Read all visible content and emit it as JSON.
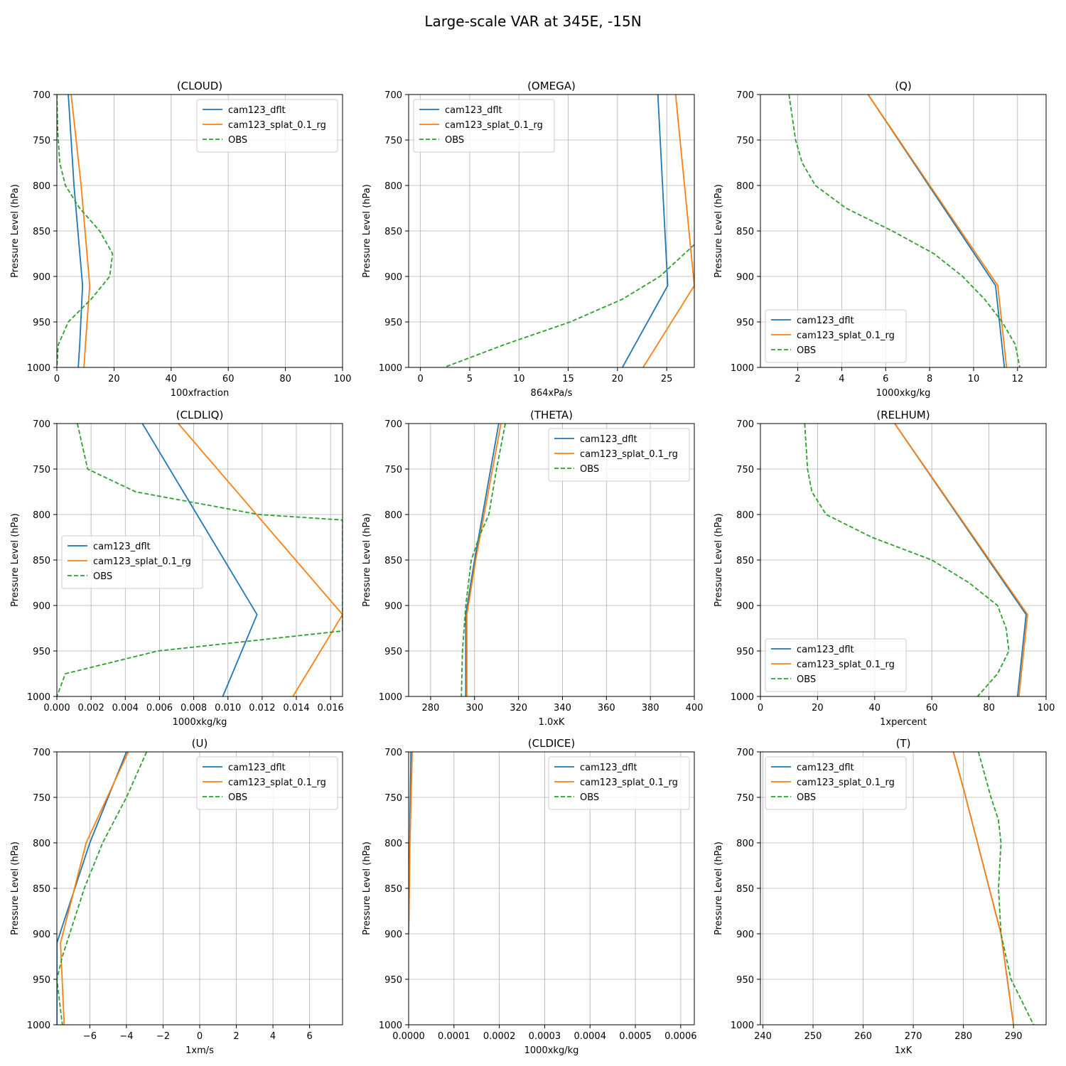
{
  "figure": {
    "suptitle": "Large-scale VAR at 345E, -15N"
  },
  "colors": {
    "dflt": "#1f77b4",
    "splat": "#ff7f0e",
    "obs": "#2ca02c",
    "grid": "#b0b0b0"
  },
  "chart_data": [
    {
      "type": "line",
      "title": "(CLOUD)",
      "xlabel": "100xfraction",
      "ylabel": "Pressure Level (hPa)",
      "xlim": [
        0,
        100
      ],
      "ylim": [
        1000,
        700
      ],
      "xticks": [
        0,
        20,
        40,
        60,
        80,
        100
      ],
      "yticks": [
        700,
        750,
        800,
        850,
        900,
        950,
        1000
      ],
      "grid": true,
      "legend": "upper-right",
      "series": [
        {
          "name": "cam123_dflt",
          "x": [
            4,
            6,
            9,
            8,
            7.5
          ],
          "y": [
            700,
            800,
            910,
            975,
            1000
          ]
        },
        {
          "name": "cam123_splat_0.1_rg",
          "x": [
            5,
            8.5,
            11.5,
            10,
            9.5
          ],
          "y": [
            700,
            800,
            910,
            975,
            1000
          ]
        },
        {
          "name": "OBS",
          "x": [
            0,
            0.3,
            1,
            3,
            8,
            15,
            19.5,
            18.5,
            12,
            4,
            0.5,
            0
          ],
          "y": [
            700,
            740,
            775,
            800,
            825,
            850,
            875,
            900,
            925,
            950,
            975,
            1000
          ]
        }
      ]
    },
    {
      "type": "line",
      "title": "(OMEGA)",
      "xlabel": "864xPa/s",
      "ylabel": "Pressure Level (hPa)",
      "xlim": [
        -1.2,
        27.8
      ],
      "ylim": [
        1000,
        700
      ],
      "xticks": [
        0,
        5,
        10,
        15,
        20,
        25
      ],
      "yticks": [
        700,
        750,
        800,
        850,
        900,
        950,
        1000
      ],
      "grid": true,
      "legend": "upper-left",
      "series": [
        {
          "name": "cam123_dflt",
          "x": [
            24.1,
            25.1,
            20.5
          ],
          "y": [
            700,
            910,
            1000
          ]
        },
        {
          "name": "cam123_splat_0.1_rg",
          "x": [
            25.9,
            27.8,
            22.6
          ],
          "y": [
            700,
            910,
            1000
          ]
        },
        {
          "name": "OBS",
          "x": [
            27.8,
            24.3,
            20.5,
            15.2,
            8.5,
            2.4
          ],
          "y": [
            865,
            900,
            925,
            950,
            975,
            1000
          ]
        }
      ]
    },
    {
      "type": "line",
      "title": "(Q)",
      "xlabel": "1000xkg/kg",
      "ylabel": "Pressure Level (hPa)",
      "xlim": [
        0.3,
        13.3
      ],
      "ylim": [
        1000,
        700
      ],
      "xticks": [
        2,
        4,
        6,
        8,
        10,
        12
      ],
      "yticks": [
        700,
        750,
        800,
        850,
        900,
        950,
        1000
      ],
      "grid": true,
      "legend": "lower-left",
      "series": [
        {
          "name": "cam123_dflt",
          "x": [
            5.2,
            11,
            11.4
          ],
          "y": [
            700,
            910,
            1000
          ]
        },
        {
          "name": "cam123_splat_0.1_rg",
          "x": [
            5.2,
            11.1,
            11.5
          ],
          "y": [
            700,
            910,
            1000
          ]
        },
        {
          "name": "OBS",
          "x": [
            1.6,
            1.9,
            2.2,
            2.8,
            4.2,
            6.3,
            8.2,
            9.5,
            10.5,
            11.3,
            11.9,
            12.1
          ],
          "y": [
            700,
            750,
            775,
            800,
            825,
            850,
            875,
            900,
            925,
            950,
            975,
            1000
          ]
        }
      ]
    },
    {
      "type": "line",
      "title": "(CLDLIQ)",
      "xlabel": "1000xkg/kg",
      "ylabel": "Pressure Level (hPa)",
      "xlim": [
        0,
        0.0167
      ],
      "ylim": [
        1000,
        700
      ],
      "xticks": [
        0.0,
        0.002,
        0.004,
        0.006,
        0.008,
        0.01,
        0.012,
        0.014,
        0.016
      ],
      "xticklabels": [
        "0.000",
        "0.002",
        "0.004",
        "0.006",
        "0.008",
        "0.010",
        "0.012",
        "0.014",
        "0.016"
      ],
      "yticks": [
        700,
        750,
        800,
        850,
        900,
        950,
        1000
      ],
      "grid": true,
      "legend": "center-left",
      "series": [
        {
          "name": "cam123_dflt",
          "x": [
            0.005,
            0.0117,
            0.0097
          ],
          "y": [
            700,
            910,
            1000
          ]
        },
        {
          "name": "cam123_splat_0.1_rg",
          "x": [
            0.0071,
            0.0167,
            0.0138
          ],
          "y": [
            700,
            910,
            1000
          ]
        },
        {
          "name": "OBS",
          "x": [
            0.0012,
            0.0018,
            0.0046,
            0.0118,
            0.0167,
            0.0167,
            0.0059,
            0.0005,
            0.0
          ],
          "y": [
            700,
            750,
            775,
            800,
            806,
            928,
            950,
            975,
            1000
          ]
        }
      ]
    },
    {
      "type": "line",
      "title": "(THETA)",
      "xlabel": "1.0xK",
      "ylabel": "Pressure Level (hPa)",
      "xlim": [
        270,
        400
      ],
      "ylim": [
        1000,
        700
      ],
      "xticks": [
        280,
        300,
        320,
        340,
        360,
        380,
        400
      ],
      "yticks": [
        700,
        750,
        800,
        850,
        900,
        950,
        1000
      ],
      "grid": true,
      "legend": "upper-right",
      "series": [
        {
          "name": "cam123_dflt",
          "x": [
            311,
            300,
            296,
            296
          ],
          "y": [
            700,
            850,
            910,
            1000
          ]
        },
        {
          "name": "cam123_splat_0.1_rg",
          "x": [
            312,
            300.5,
            296.5,
            296.5
          ],
          "y": [
            700,
            850,
            910,
            1000
          ]
        },
        {
          "name": "OBS",
          "x": [
            314,
            310,
            306.5,
            302,
            298.5,
            296,
            294.5,
            294
          ],
          "y": [
            700,
            750,
            800,
            825,
            850,
            900,
            950,
            1000
          ]
        }
      ]
    },
    {
      "type": "line",
      "title": "(RELHUM)",
      "xlabel": "1xpercent",
      "ylabel": "Pressure Level (hPa)",
      "xlim": [
        0,
        100
      ],
      "ylim": [
        1000,
        700
      ],
      "xticks": [
        0,
        20,
        40,
        60,
        80,
        100
      ],
      "yticks": [
        700,
        750,
        800,
        850,
        900,
        950,
        1000
      ],
      "grid": true,
      "legend": "lower-left",
      "series": [
        {
          "name": "cam123_dflt",
          "x": [
            47,
            93,
            90
          ],
          "y": [
            700,
            910,
            1000
          ]
        },
        {
          "name": "cam123_splat_0.1_rg",
          "x": [
            47,
            93.5,
            90.5
          ],
          "y": [
            700,
            910,
            1000
          ]
        },
        {
          "name": "OBS",
          "x": [
            15.5,
            16.5,
            18,
            23,
            39,
            60,
            73,
            83,
            86,
            87,
            83,
            76
          ],
          "y": [
            700,
            750,
            775,
            800,
            825,
            850,
            875,
            900,
            925,
            950,
            975,
            1000
          ]
        }
      ]
    },
    {
      "type": "line",
      "title": "(U)",
      "xlabel": "1xm/s",
      "ylabel": "Pressure Level (hPa)",
      "xlim": [
        -7.8,
        7.8
      ],
      "ylim": [
        1000,
        700
      ],
      "xticks": [
        -6,
        -4,
        -2,
        0,
        2,
        4,
        6
      ],
      "xticklabels": [
        "−6",
        "−4",
        "−2",
        "0",
        "2",
        "4",
        "6"
      ],
      "yticks": [
        700,
        750,
        800,
        850,
        900,
        950,
        1000
      ],
      "grid": true,
      "legend": "upper-right",
      "series": [
        {
          "name": "cam123_dflt",
          "x": [
            -4,
            -6,
            -7.8,
            -7.8
          ],
          "y": [
            700,
            800,
            910,
            1000
          ]
        },
        {
          "name": "cam123_splat_0.1_rg",
          "x": [
            -3.9,
            -6.2,
            -7.6,
            -7.4
          ],
          "y": [
            700,
            800,
            910,
            1000
          ]
        },
        {
          "name": "OBS",
          "x": [
            -2.9,
            -4,
            -5.3,
            -6.3,
            -7.1,
            -7.5,
            -7.8,
            -7.5
          ],
          "y": [
            700,
            750,
            800,
            850,
            900,
            925,
            950,
            1000
          ]
        }
      ]
    },
    {
      "type": "line",
      "title": "(CLDICE)",
      "xlabel": "1000xkg/kg",
      "ylabel": "Pressure Level (hPa)",
      "xlim": [
        0,
        0.00063
      ],
      "ylim": [
        1000,
        700
      ],
      "xticks": [
        0,
        0.0001,
        0.0002,
        0.0003,
        0.0004,
        0.0005,
        0.0006
      ],
      "xticklabels": [
        "0.0000",
        "0.0001",
        "0.0002",
        "0.0003",
        "0.0004",
        "0.0005",
        "0.0006"
      ],
      "yticks": [
        700,
        750,
        800,
        850,
        900,
        950,
        1000
      ],
      "grid": true,
      "legend": "upper-right",
      "series": [
        {
          "name": "cam123_dflt",
          "x": [
            5e-06,
            2.5e-06,
            0.0
          ],
          "y": [
            700,
            800,
            900
          ]
        },
        {
          "name": "cam123_splat_0.1_rg",
          "x": [
            8e-06,
            3e-06,
            0.0
          ],
          "y": [
            700,
            800,
            900
          ]
        },
        {
          "name": "OBS",
          "x": [],
          "y": []
        }
      ]
    },
    {
      "type": "line",
      "title": "(T)",
      "xlabel": "1xK",
      "ylabel": "Pressure Level (hPa)",
      "xlim": [
        239.5,
        296.5
      ],
      "ylim": [
        1000,
        700
      ],
      "xticks": [
        240,
        250,
        260,
        270,
        280,
        290
      ],
      "yticks": [
        700,
        750,
        800,
        850,
        900,
        950,
        1000
      ],
      "grid": true,
      "legend": "upper-left",
      "series": [
        {
          "name": "cam123_dflt",
          "x": [
            278,
            280,
            287.5,
            290
          ],
          "y": [
            700,
            740,
            900,
            1000
          ]
        },
        {
          "name": "cam123_splat_0.1_rg",
          "x": [
            278,
            280,
            287.5,
            290
          ],
          "y": [
            700,
            740,
            900,
            1000
          ]
        },
        {
          "name": "OBS",
          "x": [
            283,
            285.5,
            287,
            287.5,
            287,
            287.5,
            289.5,
            294
          ],
          "y": [
            700,
            750,
            775,
            800,
            850,
            900,
            950,
            1000
          ]
        }
      ]
    }
  ]
}
